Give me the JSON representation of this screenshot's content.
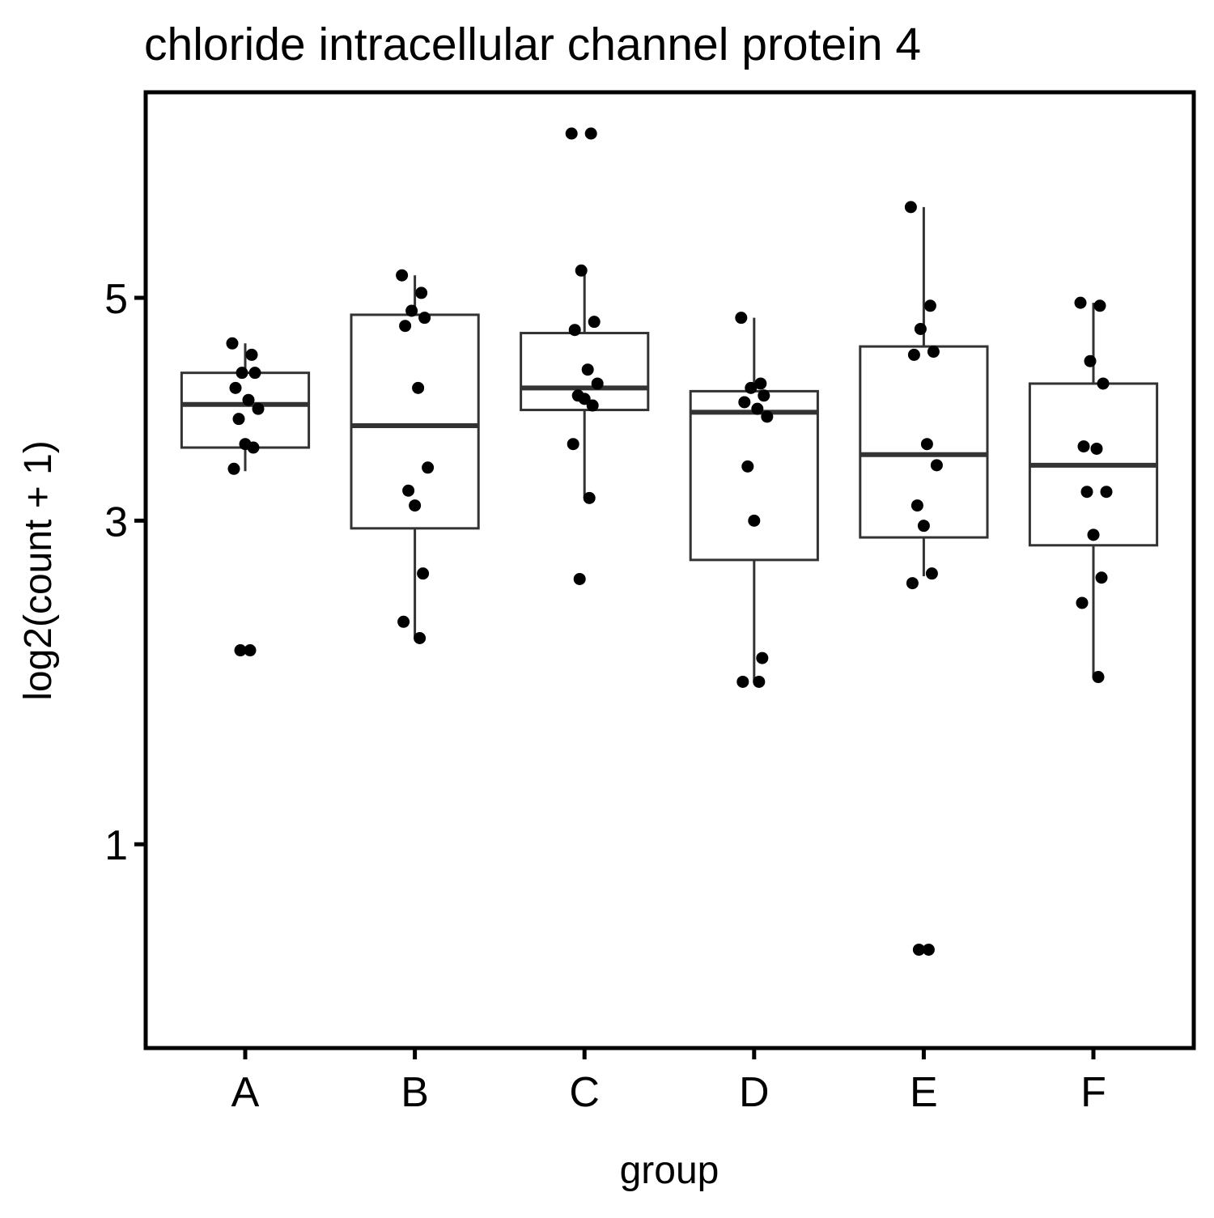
{
  "chart_data": {
    "type": "box",
    "title": "chloride intracellular channel protein 4",
    "xlabel": "group",
    "ylabel": "log2(count + 1)",
    "y_scale": "sqrt",
    "ylim": [
      0.4,
      6.8
    ],
    "y_ticks": [
      1,
      3,
      5
    ],
    "y_tick_labels": [
      "1",
      "3",
      "5"
    ],
    "categories": [
      "A",
      "B",
      "C",
      "D",
      "E",
      "F"
    ],
    "grid": false,
    "legend": "none",
    "colors": {
      "box_stroke": "#333333",
      "point_fill": "#000000",
      "frame": "#000000"
    },
    "boxes": [
      {
        "group": "A",
        "whisker_low": 3.4,
        "q1": 3.6,
        "median": 3.98,
        "q3": 4.27,
        "whisker_high": 4.55
      },
      {
        "group": "B",
        "whisker_low": 2.15,
        "q1": 2.94,
        "median": 3.79,
        "q3": 4.83,
        "whisker_high": 5.23
      },
      {
        "group": "C",
        "whisker_low": 3.18,
        "q1": 3.93,
        "median": 4.13,
        "q3": 4.65,
        "whisker_high": 5.28
      },
      {
        "group": "D",
        "whisker_low": 1.87,
        "q1": 2.7,
        "median": 3.91,
        "q3": 4.1,
        "whisker_high": 4.8
      },
      {
        "group": "E",
        "whisker_low": 2.58,
        "q1": 2.87,
        "median": 3.54,
        "q3": 4.52,
        "whisker_high": 5.96
      },
      {
        "group": "F",
        "whisker_low": 1.9,
        "q1": 2.81,
        "median": 3.45,
        "q3": 4.17,
        "whisker_high": 4.95
      }
    ],
    "points": [
      {
        "group": "A",
        "values": [
          4.55,
          4.44,
          4.27,
          4.27,
          4.13,
          4.02,
          3.94,
          3.85,
          3.63,
          3.6,
          3.42,
          2.07,
          2.07
        ]
      },
      {
        "group": "B",
        "values": [
          5.23,
          5.05,
          4.87,
          4.8,
          4.72,
          4.13,
          3.43,
          3.24,
          3.12,
          2.6,
          2.26,
          2.15
        ]
      },
      {
        "group": "C",
        "values": [
          6.8,
          6.8,
          5.28,
          4.76,
          4.68,
          4.3,
          4.17,
          4.06,
          4.03,
          3.97,
          3.63,
          3.18,
          2.56
        ]
      },
      {
        "group": "D",
        "values": [
          4.8,
          4.17,
          4.13,
          4.06,
          4.0,
          3.94,
          3.87,
          3.44,
          3.0,
          2.02,
          1.87,
          1.87
        ]
      },
      {
        "group": "E",
        "values": [
          5.96,
          4.92,
          4.69,
          4.47,
          4.44,
          3.63,
          3.45,
          3.12,
          2.96,
          2.6,
          2.53,
          0.58,
          0.58
        ]
      },
      {
        "group": "F",
        "values": [
          4.95,
          4.92,
          4.38,
          4.17,
          3.61,
          3.59,
          3.23,
          3.23,
          2.89,
          2.57,
          2.39,
          1.9
        ]
      }
    ]
  }
}
